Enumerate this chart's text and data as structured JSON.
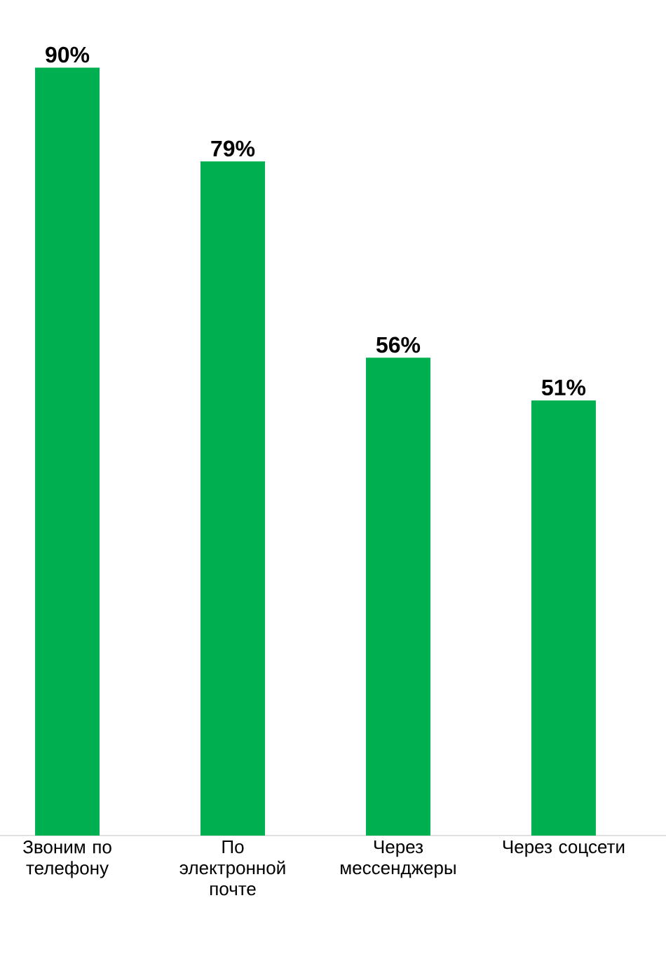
{
  "chart_data": {
    "type": "bar",
    "categories": [
      "Звоним по телефону",
      "По электронной почте",
      "Через мессенджеры",
      "Через соцсети"
    ],
    "values": [
      90,
      79,
      56,
      51
    ],
    "value_labels": [
      "90%",
      "79%",
      "56%",
      "51%"
    ],
    "color": "#00b050"
  }
}
